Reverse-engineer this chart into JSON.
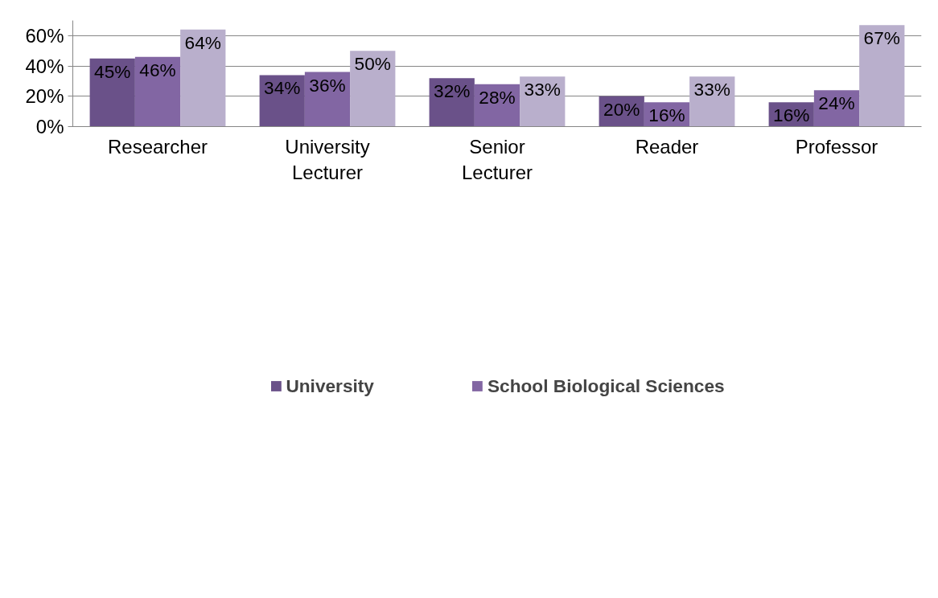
{
  "chart_data": {
    "type": "bar",
    "categories": [
      "Researcher",
      "University\nLecturer",
      "Senior\nLecturer",
      "Reader",
      "Professor"
    ],
    "series": [
      {
        "name": "University",
        "color": "#6a5189",
        "values": [
          45,
          34,
          32,
          20,
          16
        ],
        "value_labels": [
          "45%",
          "34%",
          "32%",
          "20%",
          "16%"
        ]
      },
      {
        "name": "School Biological Sciences",
        "color": "#8266a3",
        "values": [
          46,
          36,
          28,
          16,
          24
        ],
        "value_labels": [
          "46%",
          "36%",
          "28%",
          "16%",
          "24%"
        ]
      },
      {
        "color": "#b9afcc",
        "values": [
          64,
          50,
          33,
          33,
          67
        ],
        "value_labels": [
          "64%",
          "50%",
          "33%",
          "33%",
          "67%"
        ]
      }
    ],
    "ylim": [
      0,
      70
    ],
    "yticks": [
      {
        "value": 0,
        "label": "0%"
      },
      {
        "value": 20,
        "label": "20%"
      },
      {
        "value": 40,
        "label": "40%"
      },
      {
        "value": 60,
        "label": "60%"
      }
    ],
    "grid": "y",
    "legend": "bottom"
  }
}
